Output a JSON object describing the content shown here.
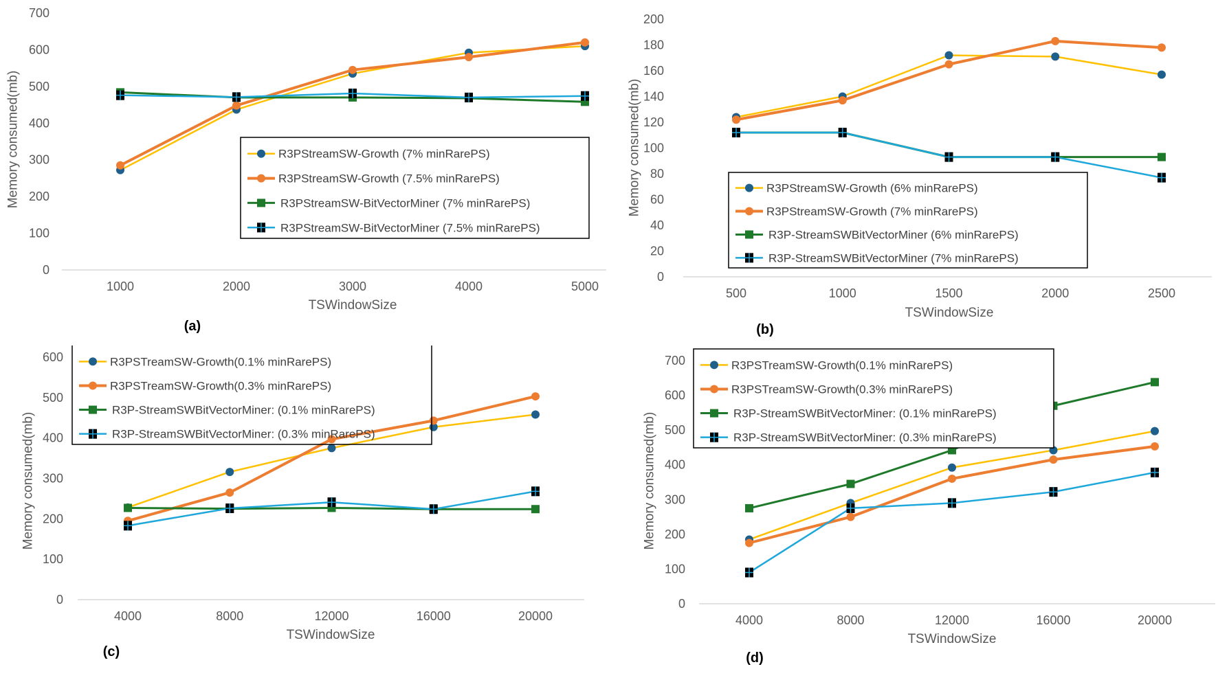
{
  "colors": {
    "growth_low": "#FFC000",
    "growth_low_marker": "#1F5F8B",
    "growth_high": "#ED7D31",
    "bv_low": "#1E7A2A",
    "bv_high": "#1EA7DB",
    "bv_high_marker": "#000000"
  },
  "chart_data": [
    {
      "type": "line",
      "panel_label": "(a)",
      "xlabel": "TSWindowSize",
      "ylabel": "Memory consumed(mb)",
      "categories": [
        "1000",
        "2000",
        "3000",
        "4000",
        "5000"
      ],
      "ylim": [
        0,
        700
      ],
      "yticks": [
        "0",
        "100",
        "200",
        "300",
        "400",
        "500",
        "600",
        "700"
      ],
      "legend": "center-right",
      "series": [
        {
          "name": "R3PStreamSW-Growth (7% minRarePS)",
          "values": [
            272,
            437,
            535,
            592,
            610
          ]
        },
        {
          "name": "R3PStreamSW-Growth (7.5% minRarePS)",
          "values": [
            285,
            448,
            545,
            580,
            620
          ]
        },
        {
          "name": "R3PStreamSW-BitVectorMiner (7% minRarePS)",
          "values": [
            484,
            470,
            470,
            468,
            458
          ]
        },
        {
          "name": "R3PStreamSW-BitVectorMiner (7.5% minRarePS)",
          "values": [
            476,
            471,
            481,
            470,
            474
          ]
        }
      ]
    },
    {
      "type": "line",
      "panel_label": "(b)",
      "xlabel": "TSWindowSize",
      "ylabel": "Memory consumed(mb)",
      "categories": [
        "500",
        "1000",
        "1500",
        "2000",
        "2500"
      ],
      "ylim": [
        0,
        200
      ],
      "yticks": [
        "0",
        "20",
        "40",
        "60",
        "80",
        "100",
        "120",
        "140",
        "160",
        "180",
        "200"
      ],
      "legend": "bottom-left",
      "series": [
        {
          "name": "R3PStreamSW-Growth (6% minRarePS)",
          "values": [
            124,
            140,
            172,
            171,
            157
          ]
        },
        {
          "name": "R3PStreamSW-Growth (7% minRarePS)",
          "values": [
            122,
            137,
            165,
            183,
            178
          ]
        },
        {
          "name": "R3P-StreamSWBitVectorMiner (6% minRarePS)",
          "values": [
            112,
            112,
            93,
            93,
            93
          ]
        },
        {
          "name": "R3P-StreamSWBitVectorMiner (7% minRarePS)",
          "values": [
            112,
            112,
            93,
            93,
            77
          ]
        }
      ]
    },
    {
      "type": "line",
      "panel_label": "(c)",
      "xlabel": "TSWindowSize",
      "ylabel": "Memory consumed(mb)",
      "categories": [
        "4000",
        "8000",
        "12000",
        "16000",
        "20000"
      ],
      "ylim": [
        0,
        600
      ],
      "yticks": [
        "0",
        "100",
        "200",
        "300",
        "400",
        "500",
        "600"
      ],
      "legend": "top-left",
      "series": [
        {
          "name": "R3PSTreamSW-Growth(0.1% minRarePS)",
          "values": [
            228,
            316,
            375,
            427,
            458
          ]
        },
        {
          "name": "R3PSTreamSW-Growth(0.3% minRarePS)",
          "values": [
            195,
            265,
            397,
            443,
            503
          ]
        },
        {
          "name": "R3P-StreamSWBitVectorMiner: (0.1% minRarePS)",
          "values": [
            227,
            225,
            227,
            224,
            224
          ]
        },
        {
          "name": "R3P-StreamSWBitVectorMiner: (0.3% minRarePS)",
          "values": [
            183,
            226,
            241,
            224,
            268
          ]
        }
      ]
    },
    {
      "type": "line",
      "panel_label": "(d)",
      "xlabel": "TSWindowSize",
      "ylabel": "Memory consumed(mb)",
      "categories": [
        "4000",
        "8000",
        "12000",
        "16000",
        "20000"
      ],
      "ylim": [
        0,
        700
      ],
      "yticks": [
        "0",
        "100",
        "200",
        "300",
        "400",
        "500",
        "600",
        "700"
      ],
      "legend": "top-left",
      "series": [
        {
          "name": "R3PSTreamSW-Growth(0.1% minRarePS)",
          "values": [
            185,
            290,
            392,
            442,
            497
          ]
        },
        {
          "name": "R3PSTreamSW-Growth(0.3% minRarePS)",
          "values": [
            175,
            250,
            360,
            415,
            453
          ]
        },
        {
          "name": "R3P-StreamSWBitVectorMiner: (0.1% minRarePS)",
          "values": [
            275,
            345,
            442,
            570,
            638
          ]
        },
        {
          "name": "R3P-StreamSWBitVectorMiner: (0.3% minRarePS)",
          "values": [
            90,
            275,
            290,
            322,
            378
          ]
        }
      ]
    }
  ]
}
